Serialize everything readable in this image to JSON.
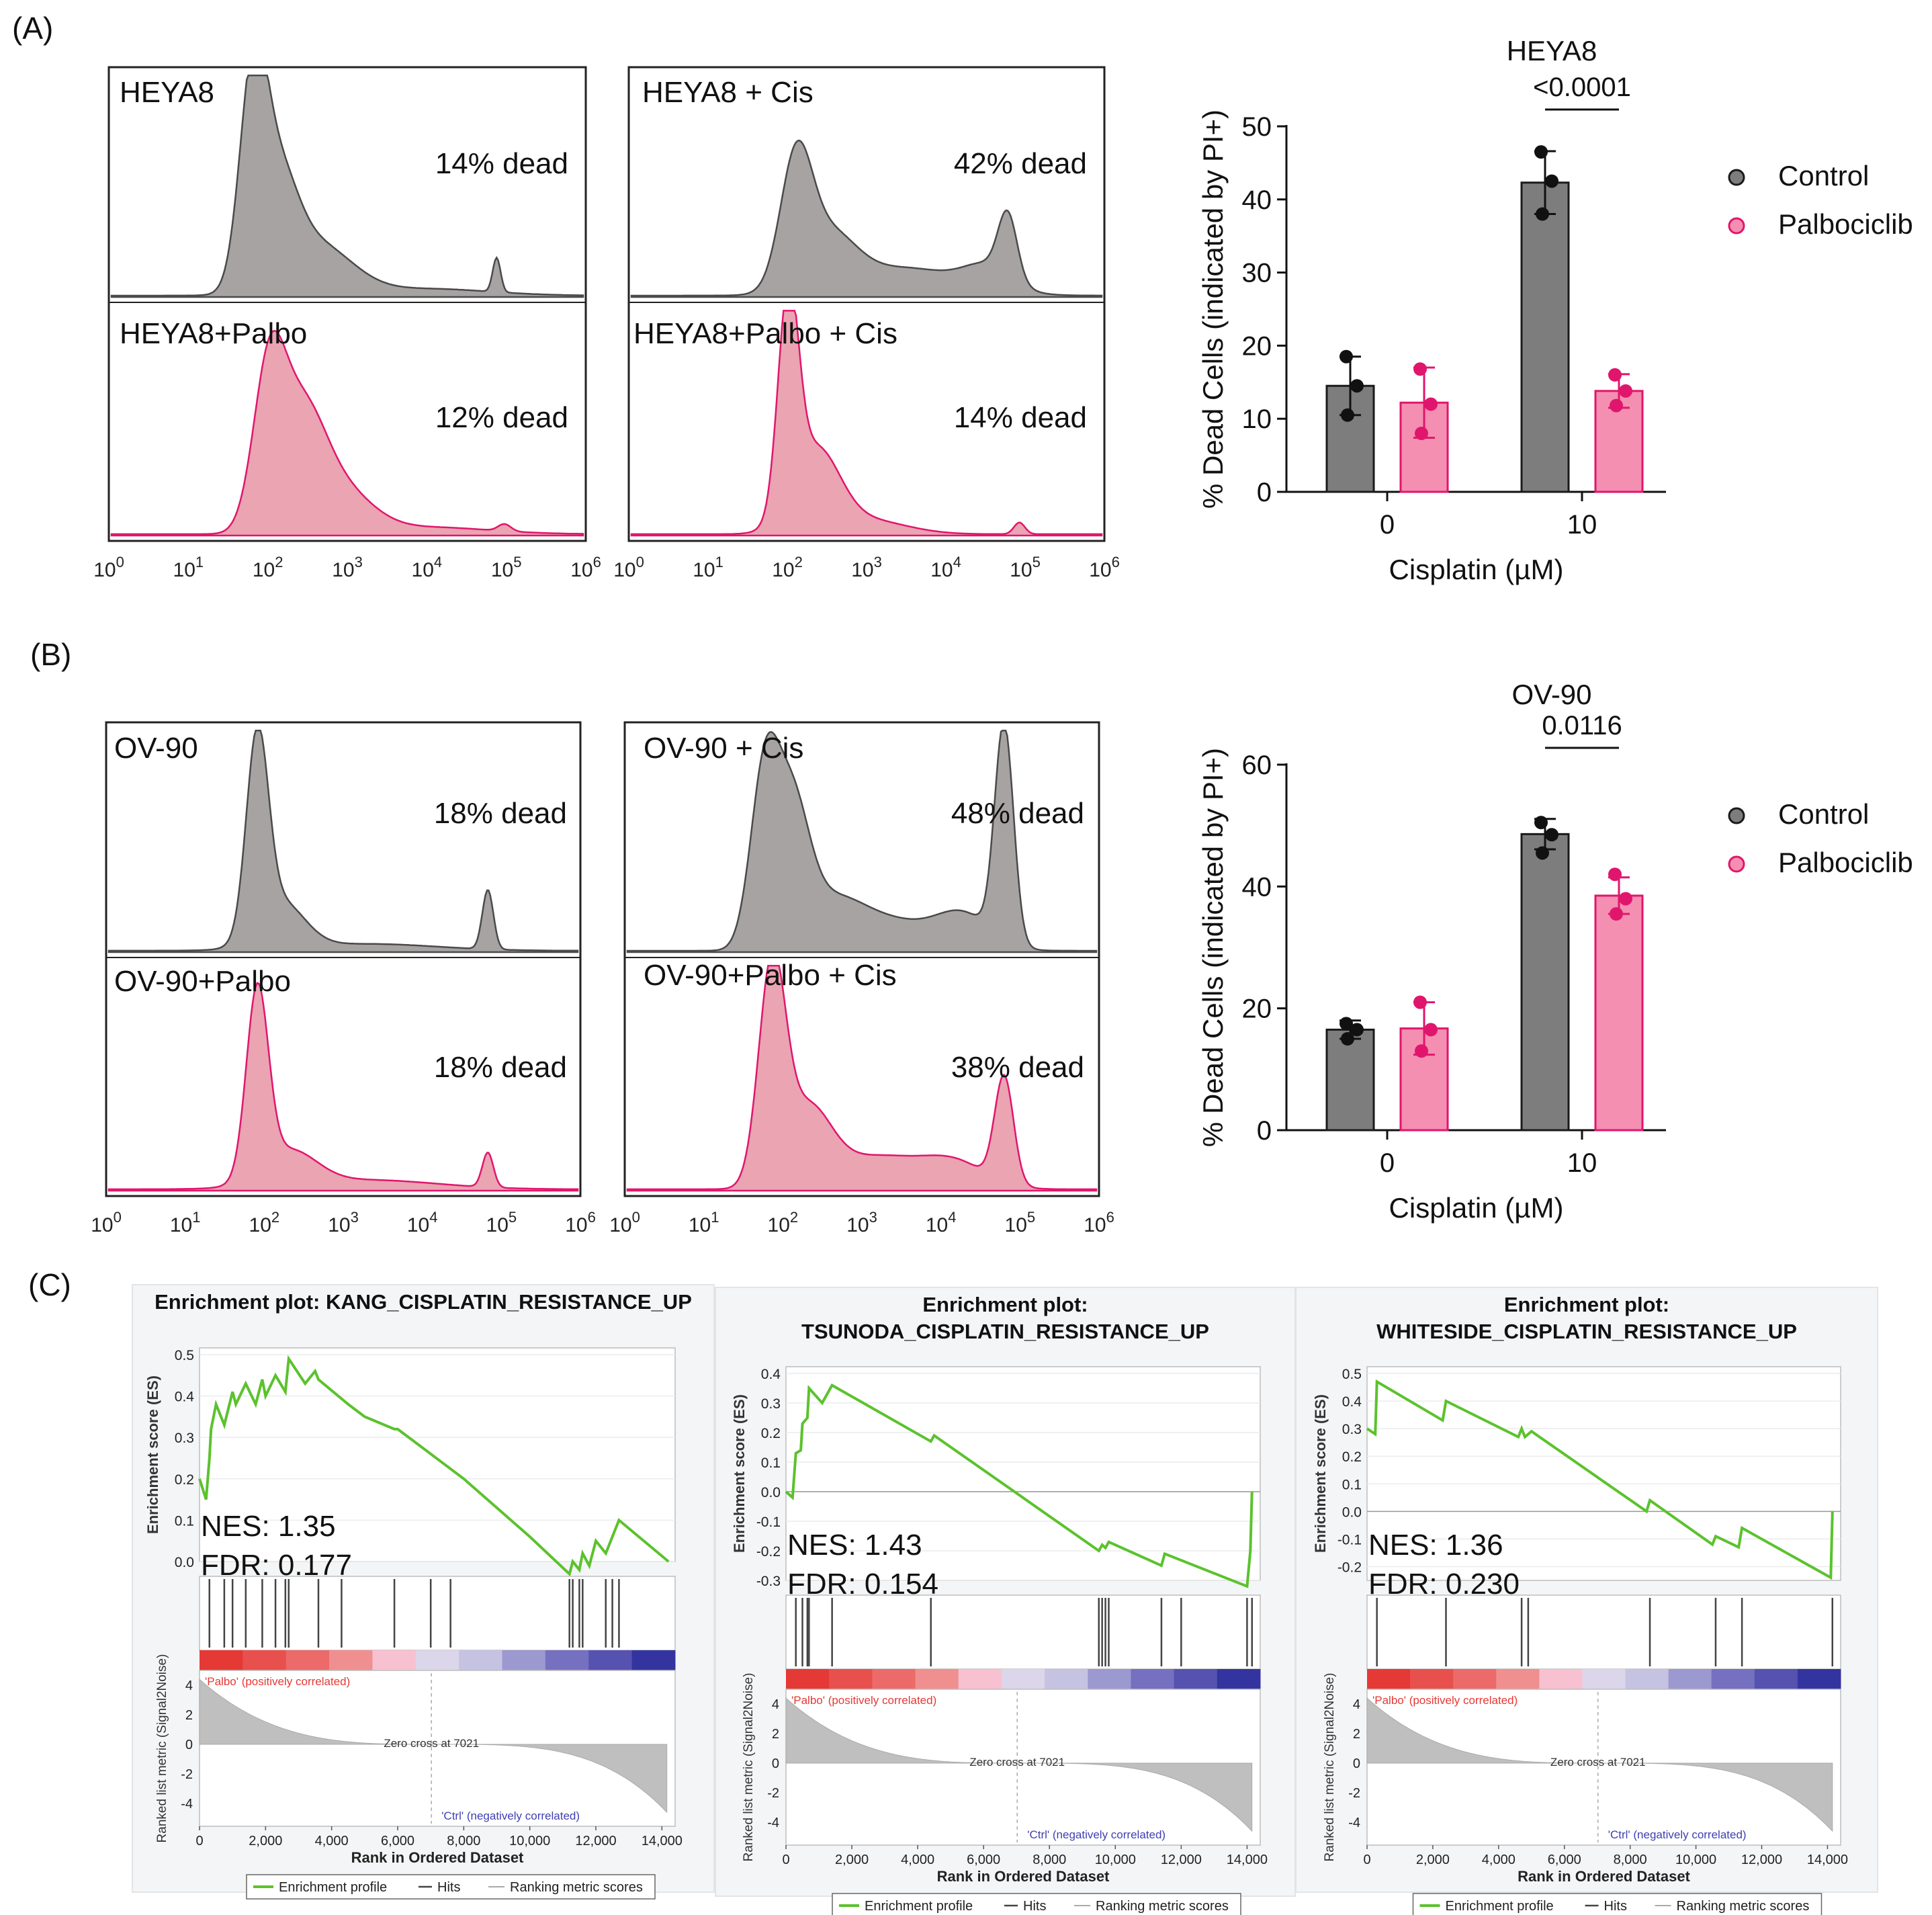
{
  "colors": {
    "control": "#7d7d7d",
    "palbo": "#f48fb1",
    "palbo_edge": "#e0166d",
    "hist_grey": "#a7a3a3",
    "hist_pink": "#eaa4b2",
    "es_line": "#5bc22d",
    "hits": "#444444",
    "metric": "#bfbfbf",
    "pos_label": "#e53935",
    "neg_label": "#3f3fb3"
  },
  "panel_labels": [
    "(A)",
    "(B)",
    "(C)"
  ],
  "flow_axis_ticks": [
    "10^0",
    "10^1",
    "10^2",
    "10^3",
    "10^4",
    "10^5",
    "10^6"
  ],
  "flow": {
    "A": [
      {
        "top_label": "HEYA8",
        "top_dead": "14% dead",
        "bottom_label": "HEYA8+Palbo",
        "bottom_dead": "12% dead"
      },
      {
        "top_label": "HEYA8 + Cis",
        "top_dead": "42% dead",
        "bottom_label": "HEYA8+Palbo + Cis",
        "bottom_dead": "14% dead"
      }
    ],
    "B": [
      {
        "top_label": "OV-90",
        "top_dead": "18% dead",
        "bottom_label": "OV-90+Palbo",
        "bottom_dead": "18% dead"
      },
      {
        "top_label": "OV-90 + Cis",
        "top_dead": "48% dead",
        "bottom_label": "OV-90+Palbo + Cis",
        "bottom_dead": "38% dead"
      }
    ]
  },
  "chart_data": [
    {
      "type": "bar",
      "title": "HEYA8",
      "xlabel": "Cisplatin (µM)",
      "ylabel": "% Dead Cells (indicated by PI+)",
      "categories": [
        "0",
        "10"
      ],
      "ylim": [
        0,
        50
      ],
      "yticks": [
        0,
        10,
        20,
        30,
        40,
        50
      ],
      "legend": "right",
      "series": [
        {
          "name": "Control",
          "values": [
            14.5,
            42.3
          ],
          "errors": [
            4.0,
            4.3
          ],
          "points": [
            [
              18.5,
              14.5,
              10.5
            ],
            [
              46.5,
              42.5,
              38.0
            ]
          ]
        },
        {
          "name": "Palbociclib",
          "values": [
            12.2,
            13.8
          ],
          "errors": [
            4.8,
            2.3
          ],
          "points": [
            [
              16.8,
              12.0,
              8.0
            ],
            [
              16.0,
              13.8,
              11.8
            ]
          ]
        }
      ],
      "annotation": {
        "text": "<0.0001",
        "category": "10"
      }
    },
    {
      "type": "bar",
      "title": "OV-90",
      "xlabel": "Cisplatin (µM)",
      "ylabel": "% Dead Cells (indicated by PI+)",
      "categories": [
        "0",
        "10"
      ],
      "ylim": [
        0,
        60
      ],
      "yticks": [
        0,
        20,
        40,
        60
      ],
      "legend": "right",
      "series": [
        {
          "name": "Control",
          "values": [
            16.5,
            48.6
          ],
          "errors": [
            1.5,
            2.5
          ],
          "points": [
            [
              17.5,
              16.5,
              15.0
            ],
            [
              50.5,
              48.5,
              45.5
            ]
          ]
        },
        {
          "name": "Palbociclib",
          "values": [
            16.7,
            38.5
          ],
          "errors": [
            4.3,
            3.0
          ],
          "points": [
            [
              21.0,
              16.5,
              13.0
            ],
            [
              42.0,
              38.0,
              35.5
            ]
          ]
        }
      ],
      "annotation": {
        "text": "0.0116",
        "category": "10"
      }
    },
    {
      "type": "line",
      "title": "Enrichment plot: KANG_CISPLATIN_RESISTANCE_UP",
      "title_lines": [
        "Enrichment plot: KANG_CISPLATIN_RESISTANCE_UP"
      ],
      "ylabel": "Enrichment score (ES)",
      "xlabel": "Rank in Ordered Dataset",
      "ylim": [
        0,
        0.5
      ],
      "yticks": [
        "0.5",
        "0.4",
        "0.3",
        "0.2",
        "0.1",
        "0.0"
      ],
      "ytick_values": [
        0.5,
        0.4,
        0.3,
        0.2,
        0.1,
        0.0
      ],
      "x": [
        0,
        200,
        300,
        350,
        500,
        750,
        1000,
        1100,
        1400,
        1700,
        1900,
        2000,
        2300,
        2600,
        2700,
        3200,
        3500,
        3600,
        4500,
        5000,
        5900,
        6000,
        7000,
        8000,
        9000,
        10000,
        11200,
        11300,
        11500,
        11600,
        11800,
        12000,
        12300,
        12600,
        12700,
        14200
      ],
      "es": [
        0.2,
        0.15,
        0.25,
        0.32,
        0.38,
        0.33,
        0.41,
        0.38,
        0.43,
        0.38,
        0.44,
        0.4,
        0.45,
        0.41,
        0.49,
        0.43,
        0.46,
        0.44,
        0.38,
        0.35,
        0.32,
        0.32,
        0.26,
        0.2,
        0.13,
        0.06,
        -0.03,
        0.0,
        -0.02,
        0.02,
        -0.01,
        0.05,
        0.02,
        0.08,
        0.1,
        0.0
      ],
      "hits": [
        300,
        750,
        1000,
        1400,
        1900,
        2300,
        2600,
        2700,
        3600,
        4300,
        5900,
        7000,
        7600,
        11200,
        11300,
        11500,
        11600,
        12300,
        12500,
        12700
      ],
      "nes": "NES: 1.35",
      "fdr": "FDR: 0.177",
      "metric_yticks": [
        "4",
        "2",
        "0",
        "-2",
        "-4"
      ],
      "xticks": [
        "0",
        "2,000",
        "4,000",
        "6,000",
        "8,000",
        "10,000",
        "12,000",
        "14,000"
      ],
      "pos_label": "'Palbo' (positively correlated)",
      "neg_label": "'Ctrl' (negatively correlated)",
      "zero_cross": "Zero cross at 7021",
      "metric_ylabel": "Ranked list metric (Signal2Noise)",
      "legend": [
        "Enrichment profile",
        "Hits",
        "Ranking metric scores"
      ]
    },
    {
      "type": "line",
      "title": "Enrichment plot: TSUNODA_CISPLATIN_RESISTANCE_UP",
      "title_lines": [
        "Enrichment plot:",
        "TSUNODA_CISPLATIN_RESISTANCE_UP"
      ],
      "ylabel": "Enrichment score (ES)",
      "xlabel": "Rank in Ordered Dataset",
      "ylim": [
        -0.3,
        0.4
      ],
      "yticks": [
        "0.4",
        "0.3",
        "0.2",
        "0.1",
        "0.0",
        "-0.1",
        "-0.2",
        "-0.3"
      ],
      "ytick_values": [
        0.4,
        0.3,
        0.2,
        0.1,
        0.0,
        -0.1,
        -0.2,
        -0.3
      ],
      "x": [
        0,
        200,
        300,
        450,
        500,
        650,
        700,
        1100,
        1400,
        4400,
        4500,
        9500,
        9600,
        9700,
        9800,
        11400,
        11500,
        14000,
        14100,
        14150
      ],
      "es": [
        0.0,
        -0.02,
        0.13,
        0.14,
        0.23,
        0.25,
        0.35,
        0.3,
        0.36,
        0.17,
        0.19,
        -0.2,
        -0.18,
        -0.19,
        -0.17,
        -0.25,
        -0.21,
        -0.32,
        -0.2,
        0.0
      ],
      "hits": [
        300,
        500,
        650,
        700,
        1400,
        4400,
        9500,
        9600,
        9700,
        9800,
        11400,
        12000,
        14000,
        14150
      ],
      "nes": "NES: 1.43",
      "fdr": "FDR: 0.154",
      "metric_yticks": [
        "4",
        "2",
        "0",
        "-2",
        "-4"
      ],
      "xticks": [
        "0",
        "2,000",
        "4,000",
        "6,000",
        "8,000",
        "10,000",
        "12,000",
        "14,000"
      ],
      "pos_label": "'Palbo' (positively correlated)",
      "neg_label": "'Ctrl' (negatively correlated)",
      "zero_cross": "Zero cross at 7021",
      "metric_ylabel": "Ranked list metric (Signal2Noise)",
      "legend": [
        "Enrichment profile",
        "Hits",
        "Ranking metric scores"
      ]
    },
    {
      "type": "line",
      "title": "Enrichment plot: WHITESIDE_CISPLATIN_RESISTANCE_UP",
      "title_lines": [
        "Enrichment plot:",
        "WHITESIDE_CISPLATIN_RESISTANCE_UP"
      ],
      "ylabel": "Enrichment score (ES)",
      "xlabel": "Rank in Ordered Dataset",
      "ylim": [
        -0.25,
        0.5
      ],
      "yticks": [
        "0.5",
        "0.4",
        "0.3",
        "0.2",
        "0.1",
        "0.0",
        "-0.1",
        "-0.2"
      ],
      "ytick_values": [
        0.5,
        0.4,
        0.3,
        0.2,
        0.1,
        0.0,
        -0.1,
        -0.2
      ],
      "x": [
        0,
        250,
        300,
        2300,
        2400,
        4600,
        4700,
        4800,
        5000,
        8500,
        8600,
        10500,
        10600,
        11300,
        11400,
        14100,
        14150
      ],
      "es": [
        0.3,
        0.28,
        0.47,
        0.33,
        0.4,
        0.27,
        0.3,
        0.27,
        0.29,
        0.0,
        0.04,
        -0.12,
        -0.09,
        -0.13,
        -0.06,
        -0.24,
        0.0
      ],
      "hits": [
        300,
        2400,
        4700,
        4900,
        8600,
        10600,
        11400,
        14150
      ],
      "nes": "NES: 1.36",
      "fdr": "FDR: 0.230",
      "metric_yticks": [
        "4",
        "2",
        "0",
        "-2",
        "-4"
      ],
      "xticks": [
        "0",
        "2,000",
        "4,000",
        "6,000",
        "8,000",
        "10,000",
        "12,000",
        "14,000"
      ],
      "pos_label": "'Palbo' (positively correlated)",
      "neg_label": "'Ctrl' (negatively correlated)",
      "zero_cross": "Zero cross at 7021",
      "metric_ylabel": "Ranked list metric (Signal2Noise)",
      "legend": [
        "Enrichment profile",
        "Hits",
        "Ranking metric scores"
      ]
    }
  ]
}
